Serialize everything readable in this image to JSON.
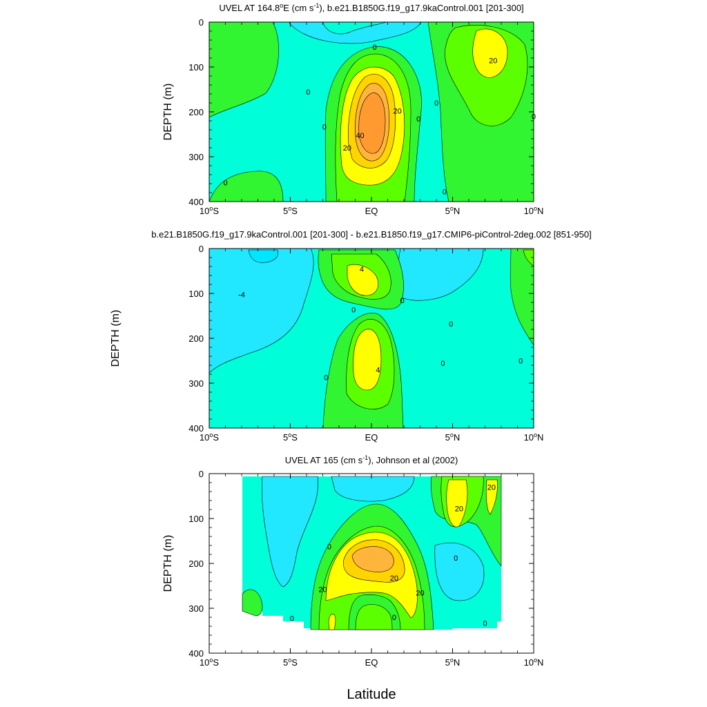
{
  "colors": {
    "level_neg2": "#00e6ff",
    "level_neg1": "#21e8ff",
    "level_0": "#00ffd8",
    "level_1": "#31f531",
    "level_2": "#5cff00",
    "level_3": "#ffff00",
    "level_4": "#ffd400",
    "level_5": "#ffb43c",
    "level_6": "#ff9a30",
    "missing": "#ffffff"
  },
  "shared_xlabel": "Latitude",
  "chart_data": [
    {
      "type": "contour",
      "title_lines": [
        "UVEL AT 164.8",
        "o",
        "E (cm s",
        "-1",
        "), b.e21.B1850G.f19_g17.9kaControl.001 [201-300]"
      ],
      "ylabel": "DEPTH (m)",
      "xlim": [
        -10,
        10
      ],
      "ylim": [
        400,
        0
      ],
      "xticks": [
        -10,
        -5,
        0,
        5,
        10
      ],
      "xtick_labels": [
        "10",
        "5",
        "EQ",
        "5",
        "10"
      ],
      "xtick_suffix": [
        "S",
        "S",
        "",
        "N",
        "N"
      ],
      "yticks": [
        0,
        100,
        200,
        300,
        400
      ],
      "ytick_labels": [
        "0",
        "100",
        "200",
        "300",
        "400"
      ],
      "contour_labels": [
        {
          "text": "0",
          "x": -3.9,
          "y": 155
        },
        {
          "text": "0",
          "x": -9.0,
          "y": 358
        },
        {
          "text": "0",
          "x": -2.9,
          "y": 233
        },
        {
          "text": "0",
          "x": 0.2,
          "y": 55
        },
        {
          "text": "20",
          "x": 1.6,
          "y": 198
        },
        {
          "text": "40",
          "x": -0.7,
          "y": 252
        },
        {
          "text": "20",
          "x": -1.5,
          "y": 280
        },
        {
          "text": "0",
          "x": 4.0,
          "y": 180
        },
        {
          "text": "0",
          "x": 2.9,
          "y": 215
        },
        {
          "text": "0",
          "x": 4.5,
          "y": 378
        },
        {
          "text": "20",
          "x": 7.5,
          "y": 85
        },
        {
          "text": "0",
          "x": 10.0,
          "y": 210
        }
      ]
    },
    {
      "type": "contour",
      "title_lines": [
        "b.e21.B1850G.f19_g17.9kaControl.001 [201-300] - b.e21.B1850.f19_g17.CMIP6-piControl-2deg.002 [851-950]"
      ],
      "ylabel": "DEPTH (m)",
      "xlim": [
        -10,
        10
      ],
      "ylim": [
        400,
        0
      ],
      "xticks": [
        -10,
        -5,
        0,
        5,
        10
      ],
      "xtick_labels": [
        "10",
        "5",
        "EQ",
        "5",
        "10"
      ],
      "xtick_suffix": [
        "S",
        "S",
        "",
        "N",
        "N"
      ],
      "yticks": [
        0,
        100,
        200,
        300,
        400
      ],
      "ytick_labels": [
        "0",
        "100",
        "200",
        "300",
        "400"
      ],
      "contour_labels": [
        {
          "text": "-4",
          "x": -8.0,
          "y": 102
        },
        {
          "text": "4",
          "x": -0.6,
          "y": 45
        },
        {
          "text": "0",
          "x": -1.1,
          "y": 136
        },
        {
          "text": "0",
          "x": 1.9,
          "y": 115
        },
        {
          "text": "0",
          "x": 4.9,
          "y": 168
        },
        {
          "text": "0",
          "x": 4.4,
          "y": 255
        },
        {
          "text": "0",
          "x": -2.8,
          "y": 287
        },
        {
          "text": "4",
          "x": 0.4,
          "y": 270
        },
        {
          "text": "0",
          "x": 9.2,
          "y": 250
        }
      ]
    },
    {
      "type": "contour",
      "title_lines": [
        "UVEL AT 165 (cm s",
        "-1",
        "), Johnson et al (2002)"
      ],
      "ylabel": "DEPTH (m)",
      "xlim": [
        -10,
        10
      ],
      "ylim": [
        400,
        0
      ],
      "data_extent_x": [
        -8,
        8
      ],
      "xticks": [
        -10,
        -5,
        0,
        5,
        10
      ],
      "xtick_labels": [
        "10",
        "5",
        "EQ",
        "5",
        "10"
      ],
      "xtick_suffix": [
        "S",
        "S",
        "",
        "N",
        "N"
      ],
      "yticks": [
        0,
        100,
        200,
        300,
        400
      ],
      "ytick_labels": [
        "0",
        "100",
        "200",
        "300",
        "400"
      ],
      "contour_labels": [
        {
          "text": "0",
          "x": -2.6,
          "y": 162
        },
        {
          "text": "20",
          "x": -3.0,
          "y": 258
        },
        {
          "text": "20",
          "x": 1.4,
          "y": 232
        },
        {
          "text": "20",
          "x": 3.0,
          "y": 265
        },
        {
          "text": "0",
          "x": 1.4,
          "y": 320
        },
        {
          "text": "0",
          "x": 5.2,
          "y": 188
        },
        {
          "text": "20",
          "x": 5.4,
          "y": 78
        },
        {
          "text": "20",
          "x": 7.4,
          "y": 30
        },
        {
          "text": "0",
          "x": 7.0,
          "y": 333
        },
        {
          "text": "0",
          "x": -4.9,
          "y": 322
        }
      ]
    }
  ]
}
